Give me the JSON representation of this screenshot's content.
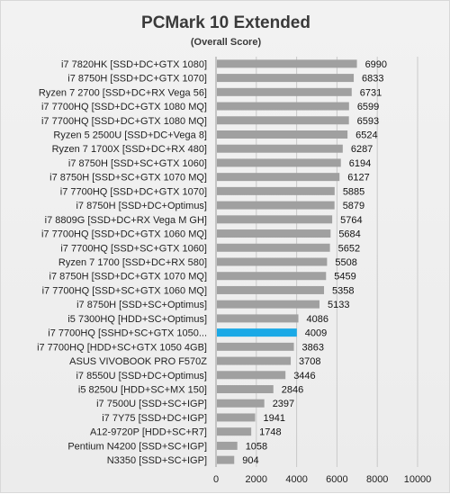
{
  "chart_data": {
    "type": "bar",
    "orientation": "horizontal",
    "title": "PCMark 10 Extended",
    "subtitle": "(Overall Score)",
    "xlabel": "",
    "ylabel": "",
    "xlim": [
      0,
      10000
    ],
    "x_ticks": [
      "0",
      "2000",
      "4000",
      "6000",
      "8000",
      "10000"
    ],
    "grid": true,
    "legend": "none",
    "bar_color": "#a0a0a0",
    "highlight_color": "#1aa9e6",
    "highlight_label_color": "#e8262a",
    "highlight_index": 19,
    "categories": [
      "i7 7820HK [SSD+DC+GTX 1080]",
      "i7 8750H [SSD+DC+GTX 1070]",
      "Ryzen 7 2700 [SSD+DC+RX Vega 56]",
      "i7 7700HQ [SSD+DC+GTX 1080 MQ]",
      "i7 7700HQ [SSD+DC+GTX 1080 MQ]",
      "Ryzen 5 2500U [SSD+DC+Vega 8]",
      "Ryzen 7 1700X [SSD+DC+RX 480]",
      "i7 8750H [SSD+SC+GTX 1060]",
      "i7 8750H [SSD+SC+GTX 1070 MQ]",
      "i7 7700HQ [SSD+DC+GTX 1070]",
      "i7 8750H [SSD+DC+Optimus]",
      "i7 8809G [SSD+DC+RX Vega M GH]",
      "i7 7700HQ [SSD+DC+GTX 1060 MQ]",
      "i7 7700HQ [SSD+SC+GTX 1060]",
      "Ryzen 7 1700 [SSD+DC+RX 580]",
      "i7 8750H [SSD+DC+GTX 1070 MQ]",
      "i7 7700HQ [SSD+SC+GTX 1060 MQ]",
      "i7 8750H [SSD+SC+Optimus]",
      "i5 7300HQ [HDD+SC+Optimus]",
      "i7 7700HQ [SSHD+SC+GTX 1050...",
      "i7 7700HQ [HDD+SC+GTX 1050 4GB]",
      "ASUS VIVOBOOK PRO F570Z",
      "i7 8550U [SSD+DC+Optimus]",
      "i5 8250U [HDD+SC+MX 150]",
      "i7 7500U [SSD+SC+IGP]",
      "i7 7Y75 [SSD+DC+IGP]",
      "A12-9720P [HDD+SC+R7]",
      "Pentium N4200 [SSD+SC+IGP]",
      "N3350 [SSD+SC+IGP]"
    ],
    "values": [
      6990,
      6833,
      6731,
      6599,
      6593,
      6524,
      6287,
      6194,
      6127,
      5885,
      5879,
      5764,
      5684,
      5652,
      5508,
      5459,
      5358,
      5133,
      4086,
      4009,
      3863,
      3708,
      3446,
      2846,
      2397,
      1941,
      1748,
      1058,
      904
    ],
    "value_labels": [
      "6990",
      "6833",
      "6731",
      "6599",
      "6593",
      "6524",
      "6287",
      "6194",
      "6127",
      "5885",
      "5879",
      "5764",
      "5684",
      "5652",
      "5508",
      "5459",
      "5358",
      "5133",
      "4086",
      "4009",
      "3863",
      "3708",
      "3446",
      "2846",
      "2397",
      "1941",
      "1748",
      "1058",
      "904"
    ]
  }
}
